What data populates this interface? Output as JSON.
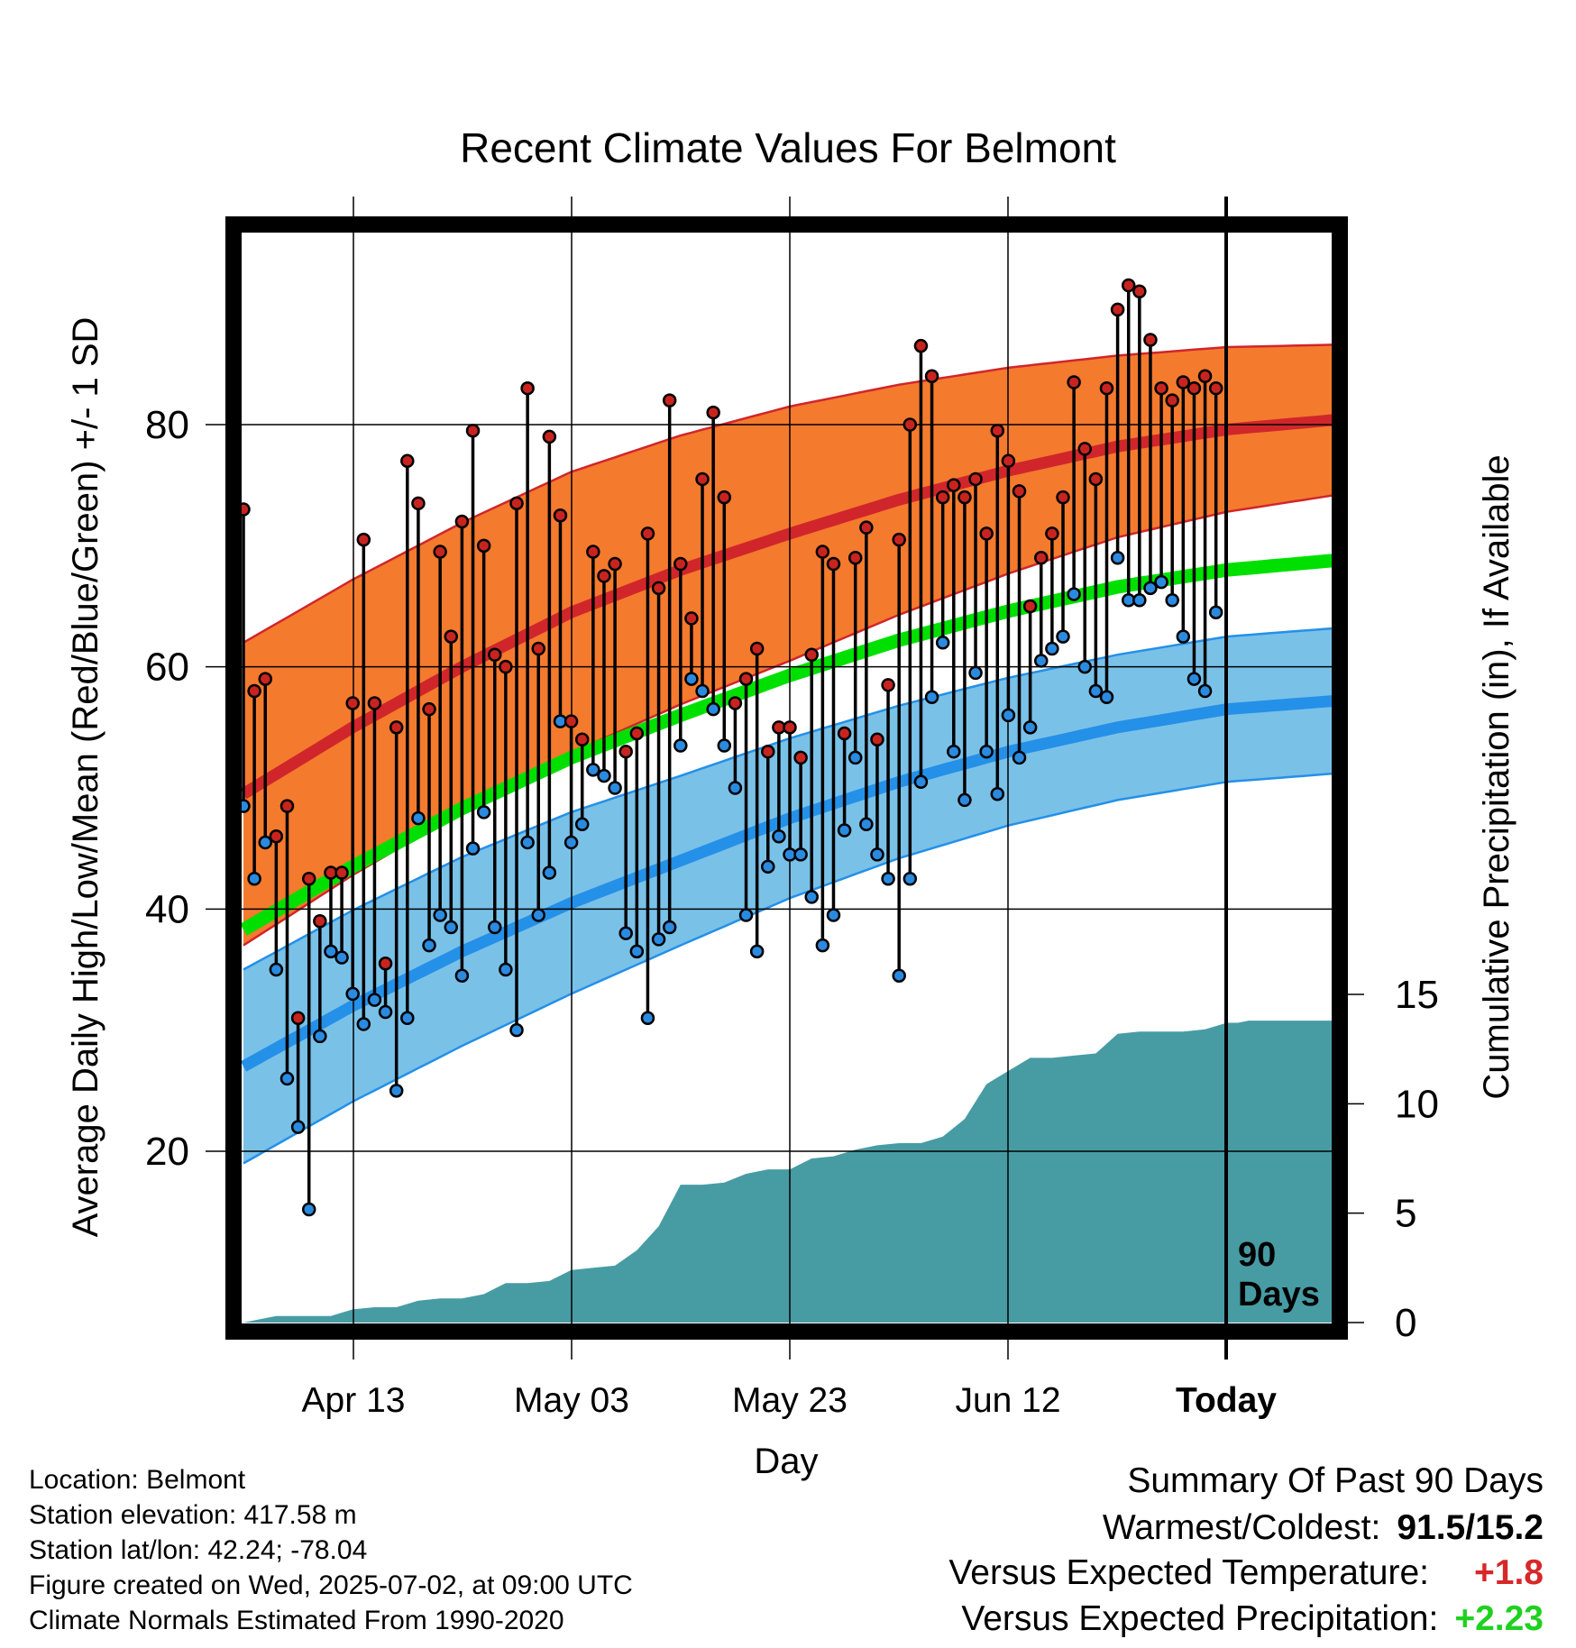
{
  "chart_data": {
    "type": "line",
    "title": "Recent Climate Values For Belmont",
    "xlabel": "Day",
    "ylabel": "Average Daily High/Low/Mean (Red/Blue/Green) +/- 1 SD",
    "y2label": "Cumulative Precipitation (in), If Available",
    "x_ticks": [
      "Apr 13",
      "May 03",
      "May 23",
      "Jun 12",
      "Today"
    ],
    "today_label": [
      "90",
      "Days"
    ],
    "y_ticks": [
      20,
      40,
      60,
      80
    ],
    "y2_ticks": [
      0,
      5,
      10,
      15
    ],
    "ylim": [
      6,
      95
    ],
    "y2lim": [
      0,
      40
    ],
    "colors": {
      "high_band": "#f47a2e",
      "high_line": "#d0262b",
      "low_band": "#7ac1e8",
      "low_line": "#2490e8",
      "mean_line": "#00e000",
      "precip": "#479ca4",
      "high_dot": "#c8241f",
      "low_dot": "#2a8ae0"
    },
    "normals": {
      "days": [
        0,
        10,
        20,
        30,
        40,
        50,
        60,
        70,
        80,
        90,
        100
      ],
      "high": [
        49.5,
        55.0,
        60.0,
        64.5,
        68.0,
        71.0,
        73.8,
        76.2,
        78.2,
        79.6,
        80.4
      ],
      "high_sd": [
        12.5,
        12.2,
        11.9,
        11.6,
        11.1,
        10.5,
        9.5,
        8.5,
        7.5,
        6.8,
        6.2
      ],
      "low": [
        27.0,
        32.0,
        36.5,
        40.5,
        44.0,
        47.5,
        50.5,
        53.0,
        55.0,
        56.5,
        57.2
      ],
      "low_sd": [
        8.0,
        7.9,
        7.8,
        7.5,
        7.0,
        6.6,
        6.3,
        6.1,
        6.0,
        6.0,
        6.0
      ],
      "mean": [
        38.3,
        43.5,
        48.3,
        52.5,
        56.0,
        59.3,
        62.2,
        64.6,
        66.6,
        68.0,
        68.8
      ]
    },
    "series": [
      {
        "name": "High",
        "values": [
          73,
          58,
          59,
          46,
          48.5,
          31,
          42.5,
          39,
          43,
          43,
          57,
          70.5,
          57,
          35.5,
          55,
          77,
          73.5,
          56.5,
          69.5,
          62.5,
          72,
          79.5,
          70,
          61,
          60,
          73.5,
          83,
          61.5,
          79,
          72.5,
          55.5,
          54,
          69.5,
          67.5,
          68.5,
          53,
          54.5,
          71,
          66.5,
          82,
          68.5,
          64,
          75.5,
          81,
          74,
          57,
          59,
          61.5,
          53,
          55,
          55,
          52.5,
          61,
          69.5,
          68.5,
          54.5,
          69,
          71.5,
          54,
          58.5,
          70.5,
          80,
          86.5,
          84,
          74,
          75,
          74,
          75.5,
          71,
          79.5,
          77,
          74.5,
          65,
          69,
          71,
          74,
          83.5,
          78,
          75.5,
          83,
          89.5,
          91.5,
          91,
          87,
          83,
          82,
          83.5,
          83,
          84,
          83
        ]
      },
      {
        "name": "Low",
        "values": [
          48.5,
          42.5,
          45.5,
          35,
          26,
          22,
          15.2,
          29.5,
          36.5,
          36,
          33,
          30.5,
          32.5,
          31.5,
          25,
          31,
          47.5,
          37,
          39.5,
          38.5,
          34.5,
          45,
          48,
          38.5,
          35,
          30,
          45.5,
          39.5,
          43,
          55.5,
          45.5,
          47,
          51.5,
          51,
          50,
          38,
          36.5,
          31,
          37.5,
          38.5,
          53.5,
          59,
          58,
          56.5,
          53.5,
          50,
          39.5,
          36.5,
          43.5,
          46,
          44.5,
          44.5,
          41,
          37,
          39.5,
          46.5,
          52.5,
          47,
          44.5,
          42.5,
          34.5,
          42.5,
          50.5,
          57.5,
          62,
          53,
          49,
          59.5,
          53,
          49.5,
          56,
          52.5,
          55,
          60.5,
          61.5,
          62.5,
          66,
          60,
          58,
          57.5,
          69,
          65.5,
          65.5,
          66.5,
          67,
          65.5,
          62.5,
          59,
          58,
          64.5
        ]
      }
    ],
    "precip_cumulative": {
      "days": [
        0,
        2,
        3,
        6,
        8,
        10,
        12,
        14,
        16,
        18,
        20,
        22,
        24,
        26,
        28,
        30,
        32,
        34,
        36,
        38,
        40,
        42,
        44,
        46,
        48,
        50,
        52,
        54,
        56,
        58,
        60,
        62,
        64,
        66,
        68,
        70,
        72,
        74,
        76,
        78,
        80,
        82,
        84,
        86,
        88,
        90,
        91,
        92,
        94,
        96,
        98,
        100
      ],
      "values": [
        0,
        0.2,
        0.3,
        0.3,
        0.3,
        0.6,
        0.7,
        0.7,
        1.0,
        1.1,
        1.1,
        1.3,
        1.8,
        1.8,
        1.9,
        2.4,
        2.5,
        2.6,
        3.3,
        4.4,
        6.3,
        6.3,
        6.4,
        6.8,
        7.0,
        7.0,
        7.5,
        7.6,
        7.9,
        8.1,
        8.2,
        8.2,
        8.5,
        9.3,
        10.9,
        11.5,
        12.1,
        12.1,
        12.2,
        12.3,
        13.2,
        13.3,
        13.3,
        13.3,
        13.4,
        13.7,
        13.7,
        13.8,
        13.8,
        13.8,
        13.8,
        13.8
      ]
    }
  },
  "meta": {
    "location": "Location: Belmont",
    "elevation": "Station elevation: 417.58 m",
    "latlon": "Station lat/lon: 42.24; -78.04",
    "created": "Figure created on Wed, 2025-07-02, at 09:00 UTC",
    "normals": "Climate Normals Estimated From 1990-2020"
  },
  "summary": {
    "heading": "Summary Of Past 90 Days",
    "warm_cold_label": "Warmest/Coldest:",
    "warm_cold_value": "91.5/15.2",
    "temp_label": "Versus Expected Temperature:",
    "temp_value": "+1.8",
    "precip_label": "Versus Expected Precipitation:",
    "precip_value": "+2.23"
  }
}
